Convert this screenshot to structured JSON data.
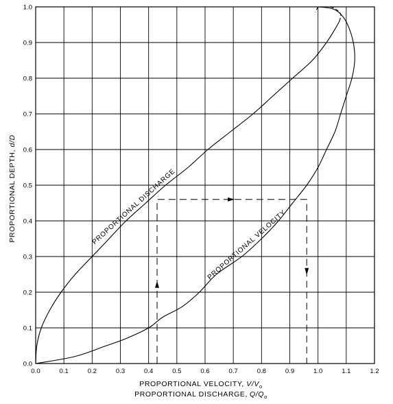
{
  "chart_data": {
    "type": "line",
    "title": "",
    "xlabel_velocity": "PROPORTIONAL VELOCITY, ",
    "xlabel_velocity_var": "V/V",
    "xlabel_velocity_sub": "o",
    "xlabel_discharge": "PROPORTIONAL DISCHARGE,",
    "xlabel_discharge_var": "Q/Q",
    "xlabel_discharge_sub": "o",
    "ylabel_prefix": "PROPORTIONAL DEPTH, ",
    "ylabel_var": "d/D",
    "xlim": [
      0,
      1.2
    ],
    "ylim": [
      0,
      1.0
    ],
    "grid": true,
    "x_ticks": [
      "0.0",
      "0.1",
      "0.2",
      "0.3",
      "0.4",
      "0.5",
      "0.6",
      "0.7",
      "0.8",
      "0.9",
      "1.0",
      "1.1",
      "1.2"
    ],
    "y_ticks": [
      "0.0",
      "0.1",
      "0.2",
      "0.3",
      "0.4",
      "0.5",
      "0.6",
      "0.7",
      "0.8",
      "0.9",
      "1.0"
    ],
    "series": [
      {
        "name": "PROPORTIONAL DISCHARGE",
        "style": "solid",
        "points": [
          [
            0,
            0
          ],
          [
            0.004,
            0.05
          ],
          [
            0.02,
            0.1
          ],
          [
            0.05,
            0.15
          ],
          [
            0.09,
            0.2
          ],
          [
            0.14,
            0.25
          ],
          [
            0.2,
            0.3
          ],
          [
            0.26,
            0.35
          ],
          [
            0.32,
            0.4
          ],
          [
            0.39,
            0.45
          ],
          [
            0.46,
            0.5
          ],
          [
            0.54,
            0.55
          ],
          [
            0.61,
            0.6
          ],
          [
            0.69,
            0.65
          ],
          [
            0.77,
            0.7
          ],
          [
            0.84,
            0.75
          ],
          [
            0.91,
            0.8
          ],
          [
            0.98,
            0.85
          ],
          [
            1.03,
            0.9
          ],
          [
            1.062,
            0.94
          ],
          [
            1.076,
            0.96
          ]
        ]
      },
      {
        "name": "",
        "style": "dashed",
        "points": [
          [
            1.076,
            0.96
          ],
          [
            1.08,
            0.98
          ],
          [
            1.06,
            0.995
          ],
          [
            1.04,
            1.0
          ]
        ]
      },
      {
        "name": "PROPORTIONAL VELOCITY",
        "style": "solid",
        "points": [
          [
            0,
            0
          ],
          [
            0.14,
            0.02
          ],
          [
            0.25,
            0.05
          ],
          [
            0.32,
            0.07
          ],
          [
            0.4,
            0.1
          ],
          [
            0.45,
            0.13
          ],
          [
            0.52,
            0.16
          ],
          [
            0.58,
            0.2
          ],
          [
            0.64,
            0.25
          ],
          [
            0.73,
            0.3
          ],
          [
            0.8,
            0.35
          ],
          [
            0.86,
            0.4
          ],
          [
            0.91,
            0.45
          ],
          [
            0.96,
            0.5
          ],
          [
            1.0,
            0.55
          ],
          [
            1.03,
            0.6
          ],
          [
            1.06,
            0.65
          ],
          [
            1.08,
            0.7
          ],
          [
            1.1,
            0.75
          ],
          [
            1.12,
            0.8
          ],
          [
            1.13,
            0.85
          ],
          [
            1.125,
            0.9
          ],
          [
            1.105,
            0.95
          ],
          [
            1.08,
            0.98
          ],
          [
            1.05,
            0.995
          ],
          [
            1.0,
            1.0
          ]
        ]
      },
      {
        "name": "",
        "style": "dashed",
        "points": [
          [
            1.0,
            1.0
          ],
          [
            0.99,
            0.985
          ]
        ]
      }
    ],
    "example_path": {
      "style": "dashed",
      "points": [
        [
          0.43,
          0.0
        ],
        [
          0.43,
          0.46
        ],
        [
          0.96,
          0.46
        ],
        [
          0.96,
          0.0
        ]
      ],
      "arrows": [
        {
          "at": [
            0.43,
            0.22
          ],
          "direction": "up"
        },
        {
          "at": [
            0.69,
            0.46
          ],
          "direction": "right"
        },
        {
          "at": [
            0.96,
            0.26
          ],
          "direction": "down"
        }
      ]
    },
    "curve_labels": [
      {
        "text": "PROPORTIONAL DISCHARGE",
        "series": 0
      },
      {
        "text": "PROPORTIONAL VELOCITY",
        "series": 2
      }
    ]
  }
}
